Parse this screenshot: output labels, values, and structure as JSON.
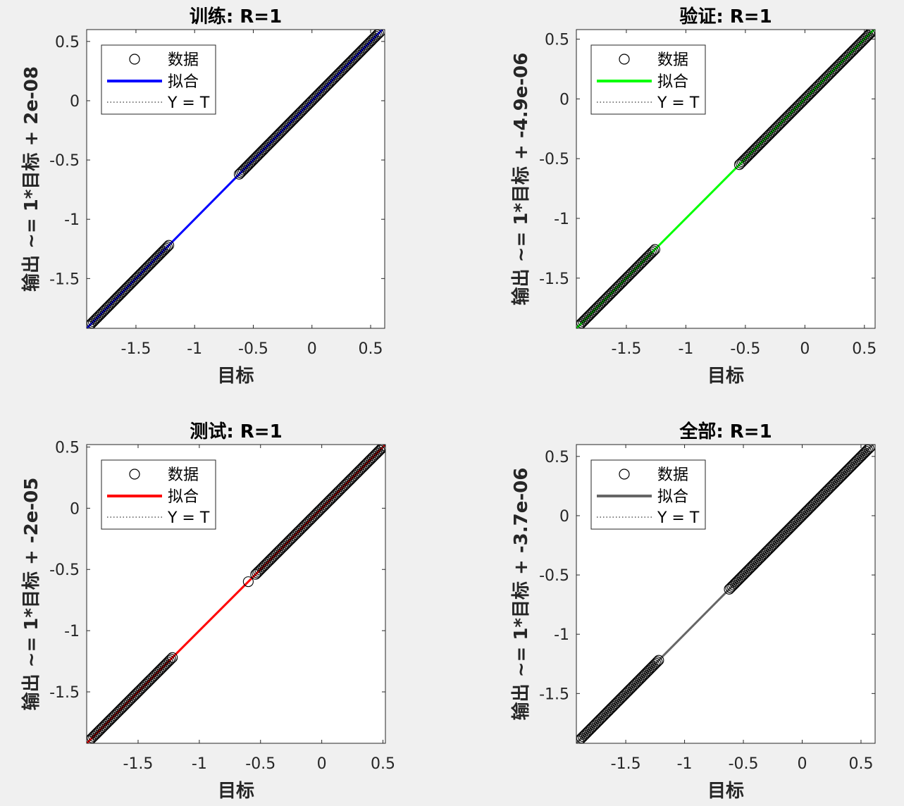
{
  "chart_data": [
    {
      "type": "scatter",
      "title": "训练: R=1",
      "xlabel": "目标",
      "ylabel": "输出 ~= 1*目标 + 2e-08",
      "xlim": [
        -1.92,
        0.62
      ],
      "ylim": [
        -1.92,
        0.6
      ],
      "xticks": [
        -1.5,
        -1,
        -0.5,
        0,
        0.5
      ],
      "xtick_labels": [
        "-1.5",
        "-1",
        "-0.5",
        "0",
        "0.5"
      ],
      "yticks": [
        -1.5,
        -1,
        -0.5,
        0,
        0.5
      ],
      "ytick_labels": [
        "-1.5",
        "-1",
        "-0.5",
        "0",
        "0.5"
      ],
      "grid": false,
      "legend": {
        "placement": "top-left",
        "entries": [
          "数据",
          "拟合",
          "Y = T"
        ]
      },
      "fit": {
        "slope": 1,
        "intercept": 2e-08,
        "color": "#0000ff"
      },
      "series": [
        {
          "name": "数据",
          "marker": "circle",
          "color": "#000000",
          "x_ranges": [
            [
              -1.9,
              -1.22
            ],
            [
              -0.62,
              0.58
            ]
          ],
          "y_equals_x": true
        }
      ]
    },
    {
      "type": "scatter",
      "title": "验证: R=1",
      "xlabel": "目标",
      "ylabel": "输出 ~= 1*目标 + -4.9e-06",
      "xlim": [
        -1.92,
        0.59
      ],
      "ylim": [
        -1.92,
        0.58
      ],
      "xticks": [
        -1.5,
        -1,
        -0.5,
        0,
        0.5
      ],
      "xtick_labels": [
        "-1.5",
        "-1",
        "-0.5",
        "0",
        "0.5"
      ],
      "yticks": [
        -1.5,
        -1,
        -0.5,
        0,
        0.5
      ],
      "ytick_labels": [
        "-1.5",
        "-1",
        "-0.5",
        "0",
        "0.5"
      ],
      "grid": false,
      "legend": {
        "placement": "top-left",
        "entries": [
          "数据",
          "拟合",
          "Y = T"
        ]
      },
      "fit": {
        "slope": 1,
        "intercept": -4.9e-06,
        "color": "#00ff00"
      },
      "series": [
        {
          "name": "数据",
          "marker": "circle",
          "color": "#000000",
          "x_ranges": [
            [
              -1.9,
              -1.26
            ],
            [
              -0.55,
              0.58
            ]
          ],
          "y_equals_x": true
        }
      ]
    },
    {
      "type": "scatter",
      "title": "测试: R=1",
      "xlabel": "目标",
      "ylabel": "输出 ~= 1*目标 + -2e-05",
      "xlim": [
        -1.92,
        0.52
      ],
      "ylim": [
        -1.92,
        0.52
      ],
      "xticks": [
        -1.5,
        -1,
        -0.5,
        0,
        0.5
      ],
      "xtick_labels": [
        "-1.5",
        "-1",
        "-0.5",
        "0",
        "0.5"
      ],
      "yticks": [
        -1.5,
        -1,
        -0.5,
        0,
        0.5
      ],
      "ytick_labels": [
        "-1.5",
        "-1",
        "-0.5",
        "0",
        "0.5"
      ],
      "grid": false,
      "legend": {
        "placement": "top-left",
        "entries": [
          "数据",
          "拟合",
          "Y = T"
        ]
      },
      "fit": {
        "slope": 1,
        "intercept": -2e-05,
        "color": "#ff0000"
      },
      "series": [
        {
          "name": "数据",
          "marker": "circle",
          "color": "#000000",
          "x_ranges": [
            [
              -1.9,
              -1.22
            ],
            [
              -0.6,
              -0.6
            ],
            [
              -0.54,
              0.51
            ]
          ],
          "y_equals_x": true
        }
      ]
    },
    {
      "type": "scatter",
      "title": "全部: R=1",
      "xlabel": "目标",
      "ylabel": "输出 ~= 1*目标 + -3.7e-06",
      "xlim": [
        -1.92,
        0.62
      ],
      "ylim": [
        -1.92,
        0.6
      ],
      "xticks": [
        -1.5,
        -1,
        -0.5,
        0,
        0.5
      ],
      "xtick_labels": [
        "-1.5",
        "-1",
        "-0.5",
        "0",
        "0.5"
      ],
      "yticks": [
        -1.5,
        -1,
        -0.5,
        0,
        0.5
      ],
      "ytick_labels": [
        "-1.5",
        "-1",
        "-0.5",
        "0",
        "0.5"
      ],
      "grid": false,
      "legend": {
        "placement": "top-left",
        "entries": [
          "数据",
          "拟合",
          "Y = T"
        ]
      },
      "fit": {
        "slope": 1,
        "intercept": -3.7e-06,
        "color": "#666666"
      },
      "series": [
        {
          "name": "数据",
          "marker": "circle",
          "color": "#000000",
          "x_ranges": [
            [
              -1.9,
              -1.22
            ],
            [
              -0.62,
              0.58
            ]
          ],
          "y_equals_x": true
        }
      ]
    }
  ]
}
